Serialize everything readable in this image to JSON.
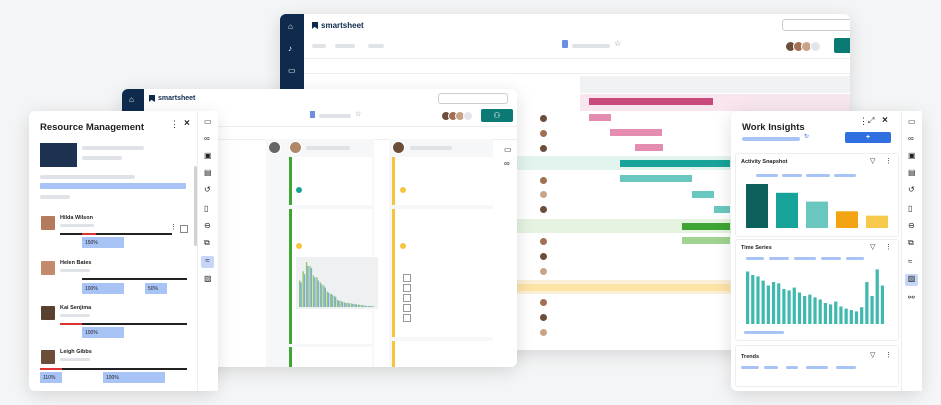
{
  "brand": "smartsheet",
  "resource_panel": {
    "title": "Resource Management",
    "people": [
      {
        "name": "Hilda Wilson",
        "allocations": [
          "150%"
        ]
      },
      {
        "name": "Helen Bates",
        "allocations": [
          "100%",
          "50%"
        ]
      },
      {
        "name": "Kai Senjima",
        "allocations": [
          "100%"
        ]
      },
      {
        "name": "Leigh Gibbs",
        "allocations": [
          "110%",
          "100%"
        ]
      }
    ]
  },
  "insights_panel": {
    "title": "Work Insights",
    "add_label": "+",
    "activity": {
      "title": "Activity Snapshot"
    },
    "timeseries": {
      "title": "Time Series"
    },
    "trends": {
      "title": "Trends"
    }
  },
  "colors": {
    "navy": "#0e2a4d",
    "teal": "#0b7a75",
    "pink": "#c84a7d",
    "green": "#3fa534",
    "yellow": "#f5c542",
    "blue": "#2f6fe0"
  },
  "chart_data": [
    {
      "type": "bar",
      "title": "Activity Snapshot",
      "categories": [
        "",
        "",
        "",
        "",
        ""
      ],
      "values": [
        100,
        80,
        60,
        38,
        28
      ],
      "colors": [
        "#0d5f5b",
        "#18a39a",
        "#6ac7c0",
        "#f2a413",
        "#f7c94a"
      ]
    },
    {
      "type": "bar",
      "title": "Time Series",
      "values": [
        75,
        70,
        68,
        62,
        55,
        60,
        58,
        50,
        48,
        52,
        45,
        40,
        42,
        38,
        35,
        30,
        28,
        32,
        25,
        22,
        20,
        18,
        24,
        60,
        40,
        78,
        55
      ]
    },
    {
      "type": "bar",
      "title": "",
      "series": [
        {
          "name": "",
          "values": [
            52,
            70,
            88,
            80,
            62,
            58,
            48,
            42,
            30,
            26,
            22,
            14,
            12,
            9,
            8,
            7,
            6,
            5,
            4,
            3,
            2,
            2
          ]
        },
        {
          "name": "",
          "values": [
            48,
            64,
            80,
            76,
            58,
            52,
            44,
            38,
            28,
            24,
            20,
            12,
            10,
            8,
            7,
            6,
            5,
            4,
            3,
            2,
            2,
            1
          ]
        }
      ]
    }
  ]
}
